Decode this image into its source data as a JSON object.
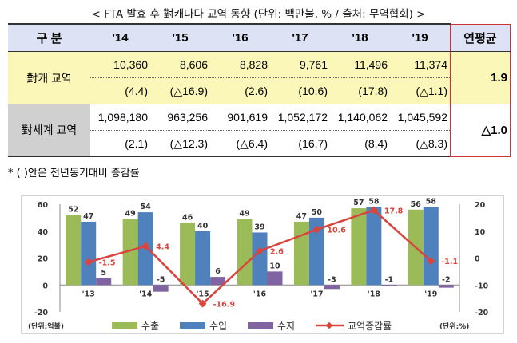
{
  "title": "< FTA 발효 후 對캐나다 교역 동향 (단위: 백만불, % / 출처: 무역협회) >",
  "table": {
    "header": [
      "구 분",
      "'14",
      "'15",
      "'16",
      "'17",
      "'18",
      "'19",
      "연평균"
    ],
    "rows": [
      {
        "label": "對캐 교역",
        "values": [
          "10,360",
          "8,606",
          "8,828",
          "9,761",
          "11,496",
          "11,374"
        ],
        "changes": [
          "(4.4)",
          "(△16.9)",
          "(2.6)",
          "(10.6)",
          "(17.8)",
          "(△1.1)"
        ],
        "avg": "1.9"
      },
      {
        "label": "對세계 교역",
        "values": [
          "1,098,180",
          "963,256",
          "901,619",
          "1,052,172",
          "1,140,062",
          "1,045,592"
        ],
        "changes": [
          "(2.1)",
          "(△12.3)",
          "(△6.4)",
          "(16.7)",
          "(8.4)",
          "(△8.3)"
        ],
        "avg": "△1.0"
      }
    ]
  },
  "footnote": "* (    )안은 전년동기대비 증감률",
  "chart_data": {
    "type": "bar+line",
    "categories": [
      "'13",
      "'14",
      "'15",
      "'16",
      "'17",
      "'18",
      "'19"
    ],
    "series": [
      {
        "name": "수출",
        "type": "bar",
        "axis": "left",
        "color": "#9bbb59",
        "values": [
          52,
          49,
          46,
          49,
          47,
          57,
          56
        ]
      },
      {
        "name": "수입",
        "type": "bar",
        "axis": "left",
        "color": "#4f81bd",
        "values": [
          47,
          54,
          40,
          39,
          50,
          58,
          58
        ]
      },
      {
        "name": "수지",
        "type": "bar",
        "axis": "left",
        "color": "#8064a2",
        "values": [
          5,
          -5,
          6,
          10,
          -3,
          -1,
          -2
        ]
      },
      {
        "name": "교역증감률",
        "type": "line",
        "axis": "right",
        "color": "#d9443c",
        "values": [
          -1.5,
          4.4,
          -16.9,
          2.6,
          10.6,
          17.8,
          -1.1
        ]
      }
    ],
    "left_axis": {
      "label": "(단위:억불)",
      "ylim": [
        -20,
        60
      ],
      "ticks": [
        60,
        40,
        20,
        0,
        -20
      ]
    },
    "right_axis": {
      "label": "(단위:%)",
      "ylim": [
        -20,
        20
      ],
      "ticks": [
        20,
        10,
        0,
        -10,
        -20
      ]
    },
    "legend": "bottom"
  }
}
